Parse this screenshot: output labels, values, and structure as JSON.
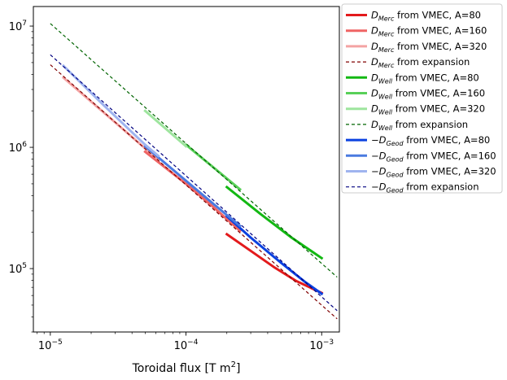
{
  "chart_data": {
    "type": "line",
    "x_scale": "log",
    "y_scale": "log",
    "xlim": [
      7.5e-06,
      0.00135
    ],
    "ylim": [
      30000.0,
      14500000.0
    ],
    "xlabel": "Toroidal flux [T m",
    "xlabel_sup": "2",
    "xlabel_end": "]",
    "ylabel": "",
    "x_ticks": [
      {
        "value": 1e-05,
        "base": "10",
        "exp": "−5"
      },
      {
        "value": 0.0001,
        "base": "10",
        "exp": "−4"
      },
      {
        "value": 0.001,
        "base": "10",
        "exp": "−3"
      }
    ],
    "y_ticks": [
      {
        "value": 100000.0,
        "base": "10",
        "exp": "5"
      },
      {
        "value": 1000000.0,
        "base": "10",
        "exp": "6"
      },
      {
        "value": 10000000.0,
        "base": "10",
        "exp": "7"
      }
    ],
    "legend_position": "outside-right",
    "series": [
      {
        "sym": "D",
        "sub": "Merc",
        "suffix": " from VMEC, A=80",
        "color": "#e31a1c",
        "width": 3,
        "dash": "",
        "x": [
          0.0002,
          0.0003,
          0.00045,
          0.00065,
          0.001
        ],
        "y": [
          192000.0,
          140000.0,
          102000.0,
          79000.0,
          63000.0
        ]
      },
      {
        "sym": "D",
        "sub": "Merc",
        "suffix": " from VMEC, A=160",
        "color": "#ef6464",
        "width": 3,
        "dash": "",
        "x": [
          5e-05,
          0.0001,
          0.00016,
          0.00025
        ],
        "y": [
          920000.0,
          500000.0,
          320000.0,
          205000.0
        ]
      },
      {
        "sym": "D",
        "sub": "Merc",
        "suffix": " from VMEC, A=320",
        "color": "#f4a3a3",
        "width": 3,
        "dash": "",
        "x": [
          1.25e-05,
          2.5e-05,
          5e-05,
          6.25e-05
        ],
        "y": [
          3750000.0,
          1920000.0,
          980000.0,
          790000.0
        ]
      },
      {
        "sym": "D",
        "sub": "Merc",
        "suffix": " from expansion",
        "color": "#800000",
        "width": 1.2,
        "dash": "4,3",
        "x": [
          1e-05,
          0.0013
        ],
        "y": [
          4800000.0,
          38500.0
        ]
      },
      {
        "sym": "D",
        "sub": "Well",
        "suffix": " from VMEC, A=80",
        "color": "#13b813",
        "width": 3,
        "dash": "",
        "x": [
          0.0002,
          0.00035,
          0.0006,
          0.001
        ],
        "y": [
          470000.0,
          285000.0,
          180000.0,
          122000.0
        ]
      },
      {
        "sym": "D",
        "sub": "Well",
        "suffix": " from VMEC, A=160",
        "color": "#58d058",
        "width": 3,
        "dash": "",
        "x": [
          0.0001,
          0.00016,
          0.00025
        ],
        "y": [
          1050000.0,
          680000.0,
          450000.0
        ]
      },
      {
        "sym": "D",
        "sub": "Well",
        "suffix": " from VMEC, A=320",
        "color": "#9ee59e",
        "width": 3,
        "dash": "",
        "x": [
          5e-05,
          0.0001
        ],
        "y": [
          2000000.0,
          1020000.0
        ]
      },
      {
        "sym": "D",
        "sub": "Well",
        "suffix": " from expansion",
        "color": "#006400",
        "width": 1.2,
        "dash": "4,3",
        "x": [
          1e-05,
          0.0013
        ],
        "y": [
          10500000.0,
          85000.0
        ]
      },
      {
        "sym": "−D",
        "sub": "Geod",
        "suffix": " from VMEC, A=80",
        "color": "#0b41e0",
        "width": 3,
        "dash": "",
        "x": [
          0.0002,
          0.0003,
          0.0005,
          0.00075,
          0.001
        ],
        "y": [
          270000.0,
          180000.0,
          112000.0,
          78000.0,
          62000.0
        ]
      },
      {
        "sym": "−D",
        "sub": "Geod",
        "suffix": " from VMEC, A=160",
        "color": "#4a7ae0",
        "width": 3,
        "dash": "",
        "x": [
          5e-05,
          0.0001,
          0.00016,
          0.00025
        ],
        "y": [
          1020000.0,
          530000.0,
          340000.0,
          225000.0
        ]
      },
      {
        "sym": "−D",
        "sub": "Geod",
        "suffix": " from VMEC, A=320",
        "color": "#9fb4ef",
        "width": 3,
        "dash": "",
        "x": [
          1.25e-05,
          2.5e-05,
          5e-05,
          6.25e-05
        ],
        "y": [
          4700000.0,
          2200000.0,
          1050000.0,
          850000.0
        ]
      },
      {
        "sym": "−D",
        "sub": "Geod",
        "suffix": " from expansion",
        "color": "#000080",
        "width": 1.2,
        "dash": "4,3",
        "x": [
          1e-05,
          0.0013
        ],
        "y": [
          5800000.0,
          45000.0
        ]
      }
    ]
  }
}
